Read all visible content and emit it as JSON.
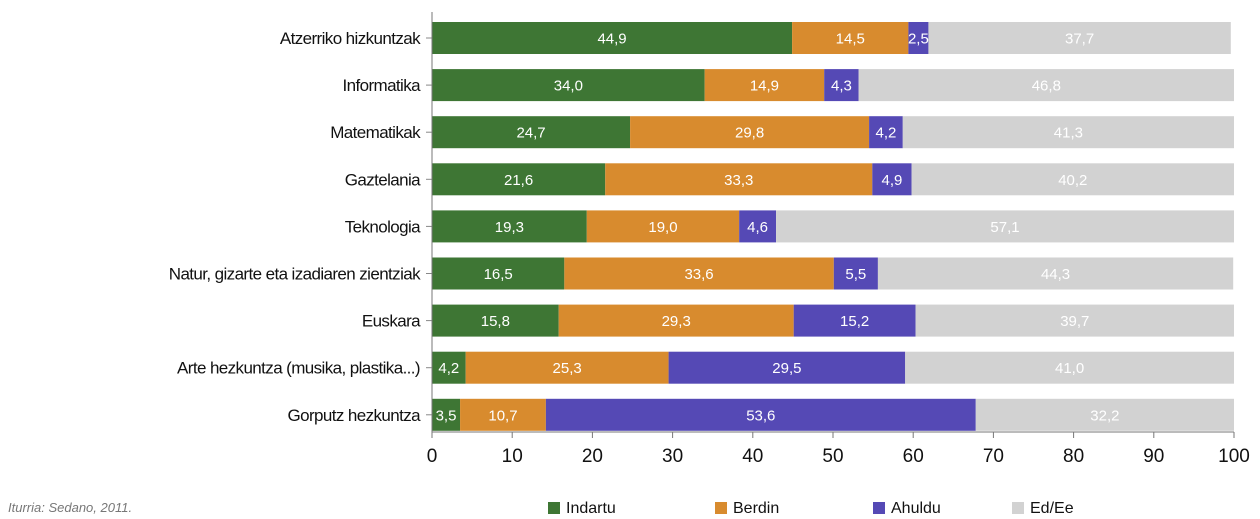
{
  "chart_data": {
    "type": "bar",
    "orientation": "horizontal",
    "stacked": true,
    "categories": [
      "Atzerriko hizkuntzak",
      "Informatika",
      "Matematikak",
      "Gaztelania",
      "Teknologia",
      "Natur, gizarte eta izadiaren zientziak",
      "Euskara",
      "Arte hezkuntza (musika, plastika...)",
      "Gorputz hezkuntza"
    ],
    "series": [
      {
        "name": "Indartu",
        "color": "#3e7634",
        "values": [
          44.9,
          34.0,
          24.7,
          21.6,
          19.3,
          16.5,
          15.8,
          4.2,
          3.5
        ],
        "labels": [
          "44,9",
          "34,0",
          "24,7",
          "21,6",
          "19,3",
          "16,5",
          "15,8",
          "4,2",
          "3,5"
        ]
      },
      {
        "name": "Berdin",
        "color": "#d88b2e",
        "values": [
          14.5,
          14.9,
          29.8,
          33.3,
          19.0,
          33.6,
          29.3,
          25.3,
          10.7
        ],
        "labels": [
          "14,5",
          "14,9",
          "29,8",
          "33,3",
          "19,0",
          "33,6",
          "29,3",
          "25,3",
          "10,7"
        ]
      },
      {
        "name": "Ahuldu",
        "color": "#5549b5",
        "values": [
          2.5,
          4.3,
          4.2,
          4.9,
          4.6,
          5.5,
          15.2,
          29.5,
          53.6
        ],
        "labels": [
          "2,5",
          "4,3",
          "4,2",
          "4,9",
          "4,6",
          "5,5",
          "15,2",
          "29,5",
          "53,6"
        ]
      },
      {
        "name": "Ed/Ee",
        "color": "#d2d2d2",
        "values": [
          37.7,
          46.8,
          41.3,
          40.2,
          57.1,
          44.3,
          39.7,
          41.0,
          32.2
        ],
        "labels": [
          "37,7",
          "46,8",
          "41,3",
          "40,2",
          "57,1",
          "44,3",
          "39,7",
          "41,0",
          "32,2"
        ]
      }
    ],
    "xlim": [
      0,
      100
    ],
    "xticks": [
      "0",
      "10",
      "20",
      "30",
      "40",
      "50",
      "60",
      "70",
      "80",
      "90",
      "100"
    ],
    "grid": false,
    "legend_position": "bottom"
  },
  "source": "Iturria: Sedano, 2011."
}
